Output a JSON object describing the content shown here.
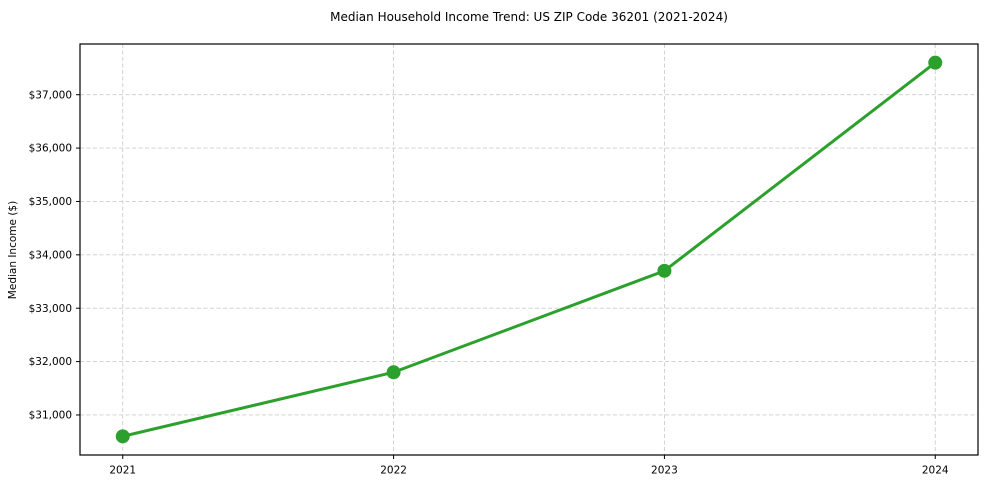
{
  "figure": {
    "background": "#ffffff"
  },
  "chart_data": {
    "type": "line",
    "title": "Median Household Income Trend: US ZIP Code 36201 (2021-2024)",
    "xlabel": "",
    "ylabel": "Median Income ($)",
    "x": [
      2021,
      2022,
      2023,
      2024
    ],
    "x_tick_labels": [
      "2021",
      "2022",
      "2023",
      "2024"
    ],
    "series": [
      {
        "values": [
          30600,
          31800,
          33700,
          37600
        ],
        "color": "#2ca02c",
        "marker": "circle",
        "marker_size": 7,
        "line_width": 3
      }
    ],
    "y_ticks": [
      31000,
      32000,
      33000,
      34000,
      35000,
      36000,
      37000
    ],
    "y_tick_labels": [
      "$31,000",
      "$32,000",
      "$33,000",
      "$34,000",
      "$35,000",
      "$36,000",
      "$37,000"
    ],
    "ylim": [
      30250,
      37950
    ],
    "grid": true,
    "grid_style": "dashed",
    "grid_color": "#cccccc",
    "spine_color": "#000000",
    "legend": "none"
  }
}
